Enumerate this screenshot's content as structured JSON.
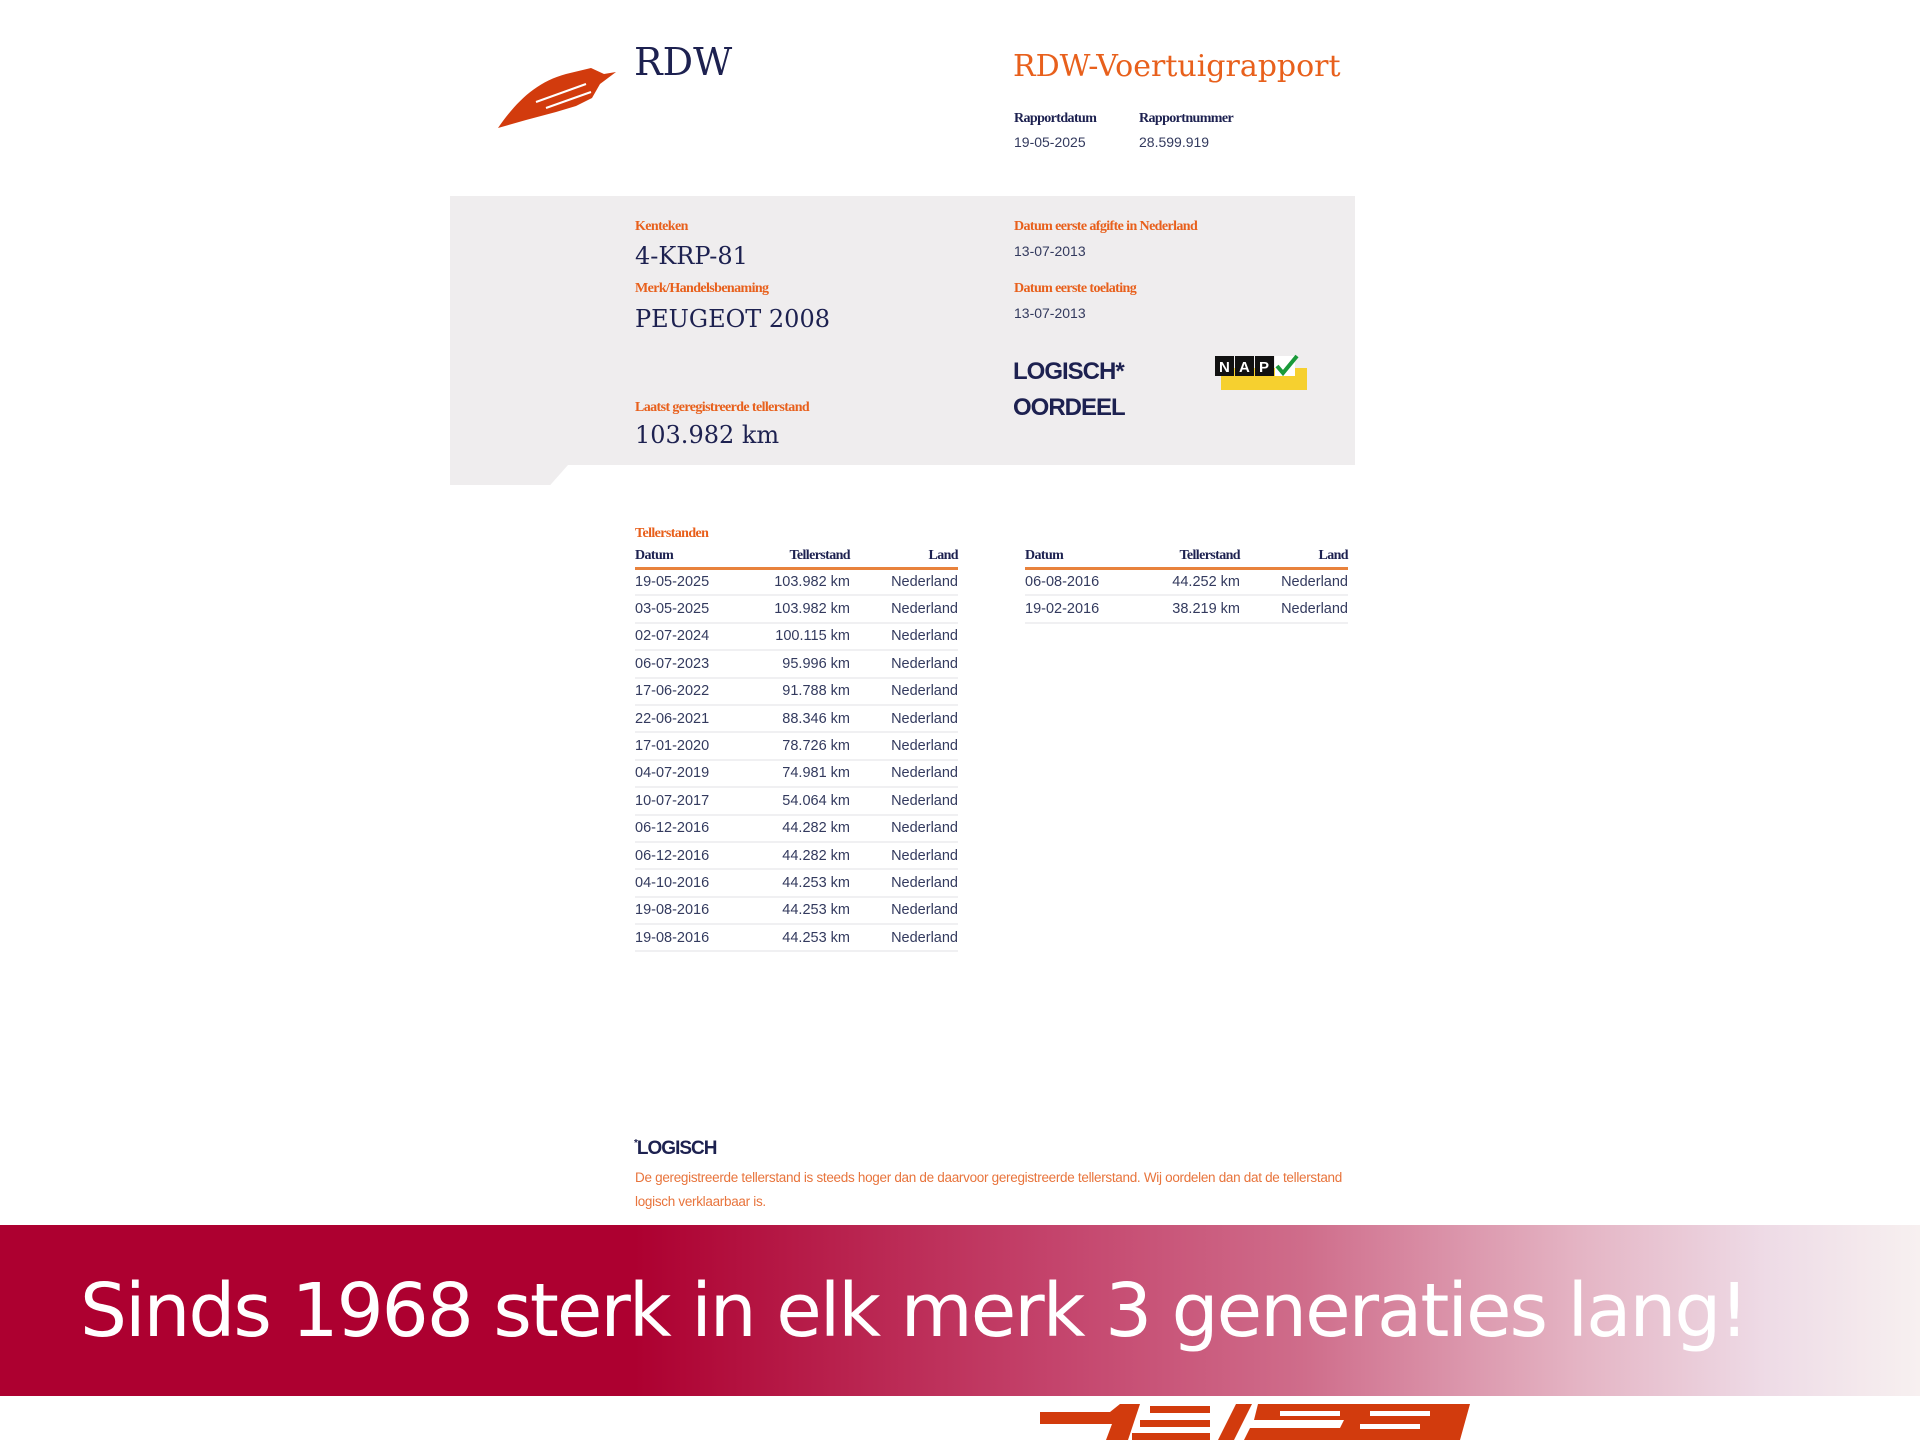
{
  "header": {
    "logo_text": "RDW",
    "title": "RDW-Voertuigrapport",
    "meta": [
      {
        "label": "Rapportdatum",
        "value": "19-05-2025"
      },
      {
        "label": "Rapportnummer",
        "value": "28.599.919"
      }
    ]
  },
  "vehicle": {
    "kenteken_label": "Kenteken",
    "kenteken": "4-KRP-81",
    "merk_label": "Merk/Handelsbenaming",
    "merk": "PEUGEOT 2008",
    "laatst_label": "Laatst geregistreerde tellerstand",
    "laatst": "103.982 km",
    "afgifte_label": "Datum eerste afgifte in Nederland",
    "afgifte": "13-07-2013",
    "toelating_label": "Datum eerste toelating",
    "toelating": "13-07-2013",
    "oordeel_value": "LOGISCH*",
    "oordeel_label": "OORDEEL",
    "nap_logo": "NAP"
  },
  "tellerstanden": {
    "title": "Tellerstanden",
    "columns": [
      "Datum",
      "Tellerstand",
      "Land"
    ],
    "table1": [
      [
        "19-05-2025",
        "103.982 km",
        "Nederland"
      ],
      [
        "03-05-2025",
        "103.982 km",
        "Nederland"
      ],
      [
        "02-07-2024",
        "100.115 km",
        "Nederland"
      ],
      [
        "06-07-2023",
        "95.996 km",
        "Nederland"
      ],
      [
        "17-06-2022",
        "91.788 km",
        "Nederland"
      ],
      [
        "22-06-2021",
        "88.346 km",
        "Nederland"
      ],
      [
        "17-01-2020",
        "78.726 km",
        "Nederland"
      ],
      [
        "04-07-2019",
        "74.981 km",
        "Nederland"
      ],
      [
        "10-07-2017",
        "54.064 km",
        "Nederland"
      ],
      [
        "06-12-2016",
        "44.282 km",
        "Nederland"
      ],
      [
        "06-12-2016",
        "44.282 km",
        "Nederland"
      ],
      [
        "04-10-2016",
        "44.253 km",
        "Nederland"
      ],
      [
        "19-08-2016",
        "44.253 km",
        "Nederland"
      ],
      [
        "19-08-2016",
        "44.253 km",
        "Nederland"
      ]
    ],
    "table2": [
      [
        "06-08-2016",
        "44.252 km",
        "Nederland"
      ],
      [
        "19-02-2016",
        "38.219 km",
        "Nederland"
      ]
    ]
  },
  "footnote": {
    "title": "LOGISCH",
    "text": "De geregistreerde tellerstand is steeds hoger dan de daarvoor geregistreerde tellerstand. Wij oordelen dan dat de tellerstand logisch verklaarbaar is."
  },
  "banner": {
    "text": "Sinds 1968 sterk in elk merk 3 generaties lang!"
  },
  "colors": {
    "orange": "#e8601c",
    "navy": "#1d2150",
    "banner": "#ad0030"
  }
}
